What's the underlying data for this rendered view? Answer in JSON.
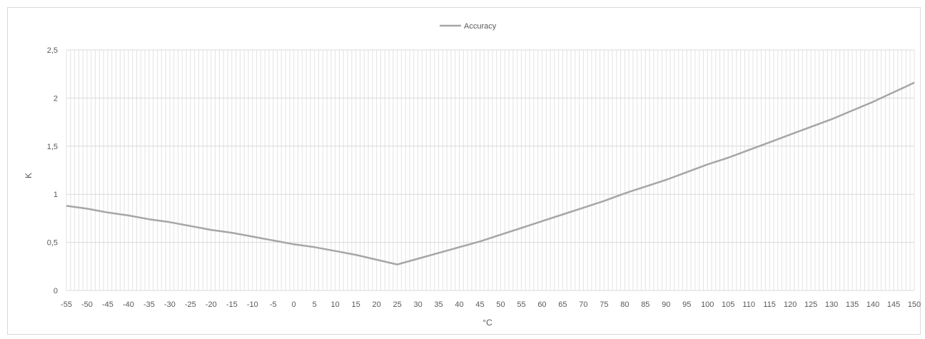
{
  "chart_data": {
    "type": "line",
    "title": "",
    "xlabel": "°C",
    "ylabel": "K",
    "xlim": [
      -55,
      150
    ],
    "ylim": [
      0,
      2.5
    ],
    "x_ticks": [
      -55,
      -50,
      -45,
      -40,
      -35,
      -30,
      -25,
      -20,
      -15,
      -10,
      -5,
      0,
      5,
      10,
      15,
      20,
      25,
      30,
      35,
      40,
      45,
      50,
      55,
      60,
      65,
      70,
      75,
      80,
      85,
      90,
      95,
      100,
      105,
      110,
      115,
      120,
      125,
      130,
      135,
      140,
      145,
      150
    ],
    "y_ticks": [
      {
        "value": 0,
        "label": "0"
      },
      {
        "value": 0.5,
        "label": "0,5"
      },
      {
        "value": 1,
        "label": "1"
      },
      {
        "value": 1.5,
        "label": "1,5"
      },
      {
        "value": 2,
        "label": "2"
      },
      {
        "value": 2.5,
        "label": "2,5"
      }
    ],
    "grid": true,
    "legend_position": "top-center",
    "series": [
      {
        "name": "Accuracy",
        "color": "#a6a6a6",
        "x": [
          -55,
          -50,
          -45,
          -40,
          -35,
          -30,
          -25,
          -20,
          -15,
          -10,
          -5,
          0,
          5,
          10,
          15,
          20,
          25,
          30,
          35,
          40,
          45,
          50,
          55,
          60,
          65,
          70,
          75,
          80,
          85,
          90,
          95,
          100,
          105,
          110,
          115,
          120,
          125,
          130,
          135,
          140,
          145,
          150
        ],
        "y": [
          0.88,
          0.85,
          0.81,
          0.78,
          0.74,
          0.71,
          0.67,
          0.63,
          0.6,
          0.56,
          0.52,
          0.48,
          0.45,
          0.41,
          0.37,
          0.32,
          0.27,
          0.33,
          0.39,
          0.45,
          0.51,
          0.58,
          0.65,
          0.72,
          0.79,
          0.86,
          0.93,
          1.01,
          1.08,
          1.15,
          1.23,
          1.31,
          1.38,
          1.46,
          1.54,
          1.62,
          1.7,
          1.78,
          1.87,
          1.96,
          2.06,
          2.16
        ]
      }
    ]
  }
}
